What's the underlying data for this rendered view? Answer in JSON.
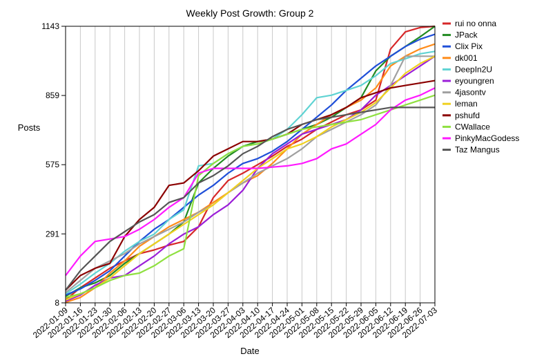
{
  "chart_data": {
    "type": "line",
    "title": "Weekly Post Growth: Group 2",
    "xlabel": "Date",
    "ylabel": "Posts",
    "ylim": [
      8,
      1143
    ],
    "yticks": [
      8,
      291,
      575,
      859,
      1143
    ],
    "grid": "vertical",
    "legend": "right",
    "x": [
      "2022-01-09",
      "2022-01-16",
      "2022-01-23",
      "2022-01-30",
      "2022-02-06",
      "2022-02-13",
      "2022-02-20",
      "2022-02-27",
      "2022-03-06",
      "2022-03-13",
      "2022-03-20",
      "2022-03-27",
      "2022-04-03",
      "2022-04-10",
      "2022-04-17",
      "2022-04-24",
      "2022-05-01",
      "2022-05-08",
      "2022-05-15",
      "2022-05-22",
      "2022-05-29",
      "2022-06-05",
      "2022-06-12",
      "2022-06-19",
      "2022-06-26",
      "2022-07-03"
    ],
    "series": [
      {
        "name": "rui no onna",
        "color": "#d62728",
        "values": [
          20,
          70,
          110,
          150,
          180,
          210,
          225,
          245,
          260,
          320,
          440,
          510,
          540,
          575,
          610,
          650,
          680,
          720,
          750,
          780,
          800,
          840,
          1050,
          1120,
          1138,
          1143
        ]
      },
      {
        "name": "JPack",
        "color": "#228b22",
        "values": [
          35,
          70,
          90,
          120,
          170,
          210,
          250,
          290,
          340,
          500,
          560,
          610,
          650,
          670,
          680,
          700,
          720,
          740,
          770,
          810,
          850,
          960,
          1020,
          1060,
          1100,
          1143
        ]
      },
      {
        "name": "Clix Pix",
        "color": "#1f4fd8",
        "values": [
          40,
          65,
          100,
          140,
          200,
          260,
          310,
          350,
          400,
          450,
          490,
          540,
          580,
          600,
          630,
          670,
          720,
          770,
          820,
          880,
          930,
          980,
          1020,
          1060,
          1090,
          1110
        ]
      },
      {
        "name": "dk001",
        "color": "#ff8c1a",
        "values": [
          10,
          30,
          70,
          130,
          180,
          240,
          280,
          320,
          350,
          380,
          420,
          460,
          500,
          530,
          580,
          640,
          700,
          740,
          780,
          810,
          840,
          890,
          980,
          1020,
          1050,
          1070
        ]
      },
      {
        "name": "DeepIn2U",
        "color": "#5fd3d3",
        "values": [
          45,
          85,
          130,
          170,
          220,
          260,
          290,
          350,
          390,
          570,
          580,
          620,
          650,
          660,
          680,
          720,
          780,
          850,
          860,
          880,
          900,
          940,
          990,
          1010,
          1030,
          1040
        ]
      },
      {
        "name": "eyoungren",
        "color": "#9b1fd8",
        "values": [
          15,
          40,
          80,
          110,
          120,
          160,
          200,
          250,
          290,
          320,
          370,
          410,
          470,
          560,
          620,
          660,
          700,
          720,
          740,
          760,
          800,
          860,
          900,
          940,
          980,
          1020
        ]
      },
      {
        "name": "4jasontv",
        "color": "#a0a0a0",
        "values": [
          50,
          100,
          150,
          180,
          210,
          250,
          280,
          310,
          340,
          380,
          410,
          460,
          500,
          540,
          570,
          600,
          640,
          690,
          720,
          750,
          780,
          820,
          900,
          1020,
          1020,
          1020
        ]
      },
      {
        "name": "leman",
        "color": "#f0d020",
        "values": [
          20,
          45,
          70,
          110,
          160,
          210,
          250,
          290,
          330,
          370,
          410,
          460,
          510,
          560,
          600,
          640,
          660,
          690,
          730,
          760,
          790,
          830,
          890,
          950,
          990,
          1020
        ]
      },
      {
        "name": "pshufd",
        "color": "#8b0000",
        "values": [
          60,
          120,
          150,
          170,
          280,
          350,
          400,
          490,
          500,
          550,
          610,
          640,
          670,
          670,
          680,
          700,
          740,
          760,
          780,
          810,
          850,
          870,
          890,
          900,
          910,
          920
        ]
      },
      {
        "name": "CWallace",
        "color": "#8fe040",
        "values": [
          30,
          45,
          70,
          100,
          120,
          130,
          160,
          200,
          230,
          530,
          580,
          620,
          650,
          660,
          680,
          700,
          720,
          730,
          740,
          750,
          760,
          780,
          800,
          820,
          840,
          860
        ]
      },
      {
        "name": "PinkyMacGodess",
        "color": "#ff1aff",
        "values": [
          120,
          200,
          260,
          270,
          280,
          310,
          350,
          400,
          440,
          540,
          560,
          560,
          560,
          560,
          565,
          570,
          580,
          600,
          640,
          660,
          700,
          740,
          800,
          840,
          860,
          890
        ]
      },
      {
        "name": "Taz Mangus",
        "color": "#555555",
        "values": [
          60,
          140,
          200,
          260,
          300,
          340,
          370,
          420,
          440,
          500,
          530,
          570,
          620,
          650,
          690,
          720,
          740,
          760,
          770,
          780,
          790,
          800,
          810,
          810,
          810,
          810
        ]
      }
    ]
  }
}
